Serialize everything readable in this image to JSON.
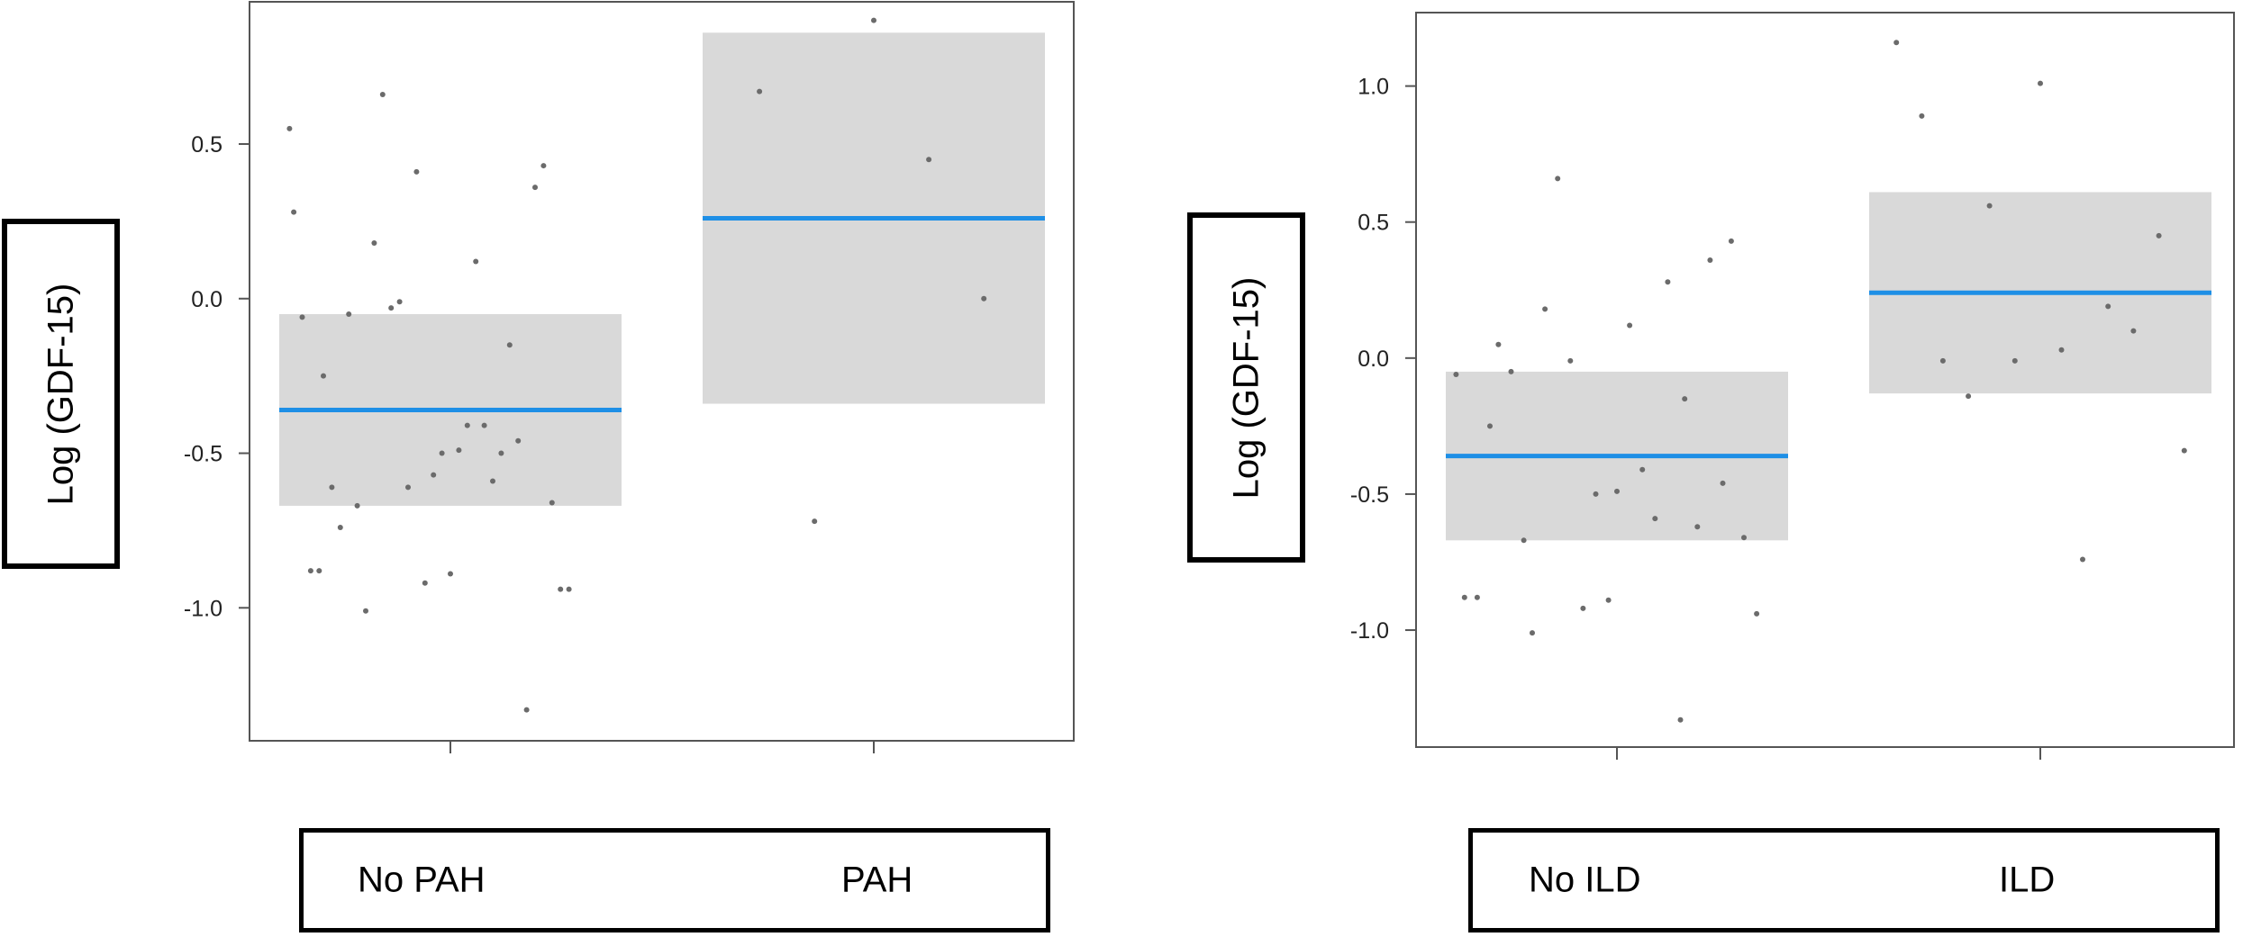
{
  "chart_data": [
    {
      "type": "scatter",
      "ylabel": "Log (GDF-15)",
      "categories": [
        "No PAH",
        "PAH"
      ],
      "yticks": [
        -1.0,
        -0.5,
        0.0,
        0.5
      ],
      "ytick_labels": [
        "-1.0",
        "-0.5",
        "0.0",
        "0.5"
      ],
      "ylim": [
        -1.43,
        0.96
      ],
      "groups": [
        {
          "name": "No PAH",
          "mean": -0.36,
          "ci": [
            -0.67,
            -0.05
          ],
          "points": [
            {
              "x": 0.62,
              "y": 0.55
            },
            {
              "x": 0.63,
              "y": 0.28
            },
            {
              "x": 0.65,
              "y": -0.06
            },
            {
              "x": 0.67,
              "y": -0.88
            },
            {
              "x": 0.69,
              "y": -0.88
            },
            {
              "x": 0.7,
              "y": -0.25
            },
            {
              "x": 0.72,
              "y": -0.61
            },
            {
              "x": 0.74,
              "y": -0.74
            },
            {
              "x": 0.76,
              "y": -0.05
            },
            {
              "x": 0.78,
              "y": -0.67
            },
            {
              "x": 0.8,
              "y": -1.01
            },
            {
              "x": 0.82,
              "y": 0.18
            },
            {
              "x": 0.84,
              "y": 0.66
            },
            {
              "x": 0.86,
              "y": -0.03
            },
            {
              "x": 0.88,
              "y": -0.01
            },
            {
              "x": 0.9,
              "y": -0.61
            },
            {
              "x": 0.92,
              "y": 0.41
            },
            {
              "x": 0.94,
              "y": -0.92
            },
            {
              "x": 0.96,
              "y": -0.57
            },
            {
              "x": 0.98,
              "y": -0.5
            },
            {
              "x": 1.0,
              "y": -0.89
            },
            {
              "x": 1.02,
              "y": -0.49
            },
            {
              "x": 1.04,
              "y": -0.41
            },
            {
              "x": 1.06,
              "y": 0.12
            },
            {
              "x": 1.08,
              "y": -0.41
            },
            {
              "x": 1.1,
              "y": -0.59
            },
            {
              "x": 1.12,
              "y": -0.5
            },
            {
              "x": 1.14,
              "y": -0.15
            },
            {
              "x": 1.16,
              "y": -0.46
            },
            {
              "x": 1.18,
              "y": -1.33
            },
            {
              "x": 1.2,
              "y": 0.36
            },
            {
              "x": 1.22,
              "y": 0.43
            },
            {
              "x": 1.24,
              "y": -0.66
            },
            {
              "x": 1.26,
              "y": -0.94
            },
            {
              "x": 1.28,
              "y": -0.94
            }
          ]
        },
        {
          "name": "PAH",
          "mean": 0.26,
          "ci": [
            -0.34,
            0.86
          ],
          "points": [
            {
              "x": 1.73,
              "y": 0.67
            },
            {
              "x": 1.86,
              "y": -0.72
            },
            {
              "x": 2.0,
              "y": 0.9
            },
            {
              "x": 2.13,
              "y": 0.45
            },
            {
              "x": 2.26,
              "y": 0.0
            }
          ]
        }
      ]
    },
    {
      "type": "scatter",
      "ylabel": "Log (GDF-15)",
      "categories": [
        "No ILD",
        "ILD"
      ],
      "yticks": [
        -1.0,
        -0.5,
        0.0,
        0.5,
        1.0
      ],
      "ytick_labels": [
        "-1.0",
        "-0.5",
        "0.0",
        "0.5",
        "1.0"
      ],
      "ylim": [
        -1.43,
        1.27
      ],
      "groups": [
        {
          "name": "No ILD",
          "mean": -0.36,
          "ci": [
            -0.67,
            -0.05
          ],
          "points": [
            {
              "x": 0.62,
              "y": -0.06
            },
            {
              "x": 0.64,
              "y": -0.88
            },
            {
              "x": 0.67,
              "y": -0.88
            },
            {
              "x": 0.7,
              "y": -0.25
            },
            {
              "x": 0.72,
              "y": 0.05
            },
            {
              "x": 0.75,
              "y": -0.05
            },
            {
              "x": 0.78,
              "y": -0.67
            },
            {
              "x": 0.8,
              "y": -1.01
            },
            {
              "x": 0.83,
              "y": 0.18
            },
            {
              "x": 0.86,
              "y": 0.66
            },
            {
              "x": 0.89,
              "y": -0.01
            },
            {
              "x": 0.92,
              "y": -0.92
            },
            {
              "x": 0.95,
              "y": -0.5
            },
            {
              "x": 0.98,
              "y": -0.89
            },
            {
              "x": 1.0,
              "y": -0.49
            },
            {
              "x": 1.03,
              "y": 0.12
            },
            {
              "x": 1.06,
              "y": -0.41
            },
            {
              "x": 1.09,
              "y": -0.59
            },
            {
              "x": 1.12,
              "y": 0.28
            },
            {
              "x": 1.15,
              "y": -1.33
            },
            {
              "x": 1.16,
              "y": -0.15
            },
            {
              "x": 1.19,
              "y": -0.62
            },
            {
              "x": 1.22,
              "y": 0.36
            },
            {
              "x": 1.25,
              "y": -0.46
            },
            {
              "x": 1.27,
              "y": 0.43
            },
            {
              "x": 1.3,
              "y": -0.66
            },
            {
              "x": 1.33,
              "y": -0.94
            }
          ]
        },
        {
          "name": "ILD",
          "mean": 0.24,
          "ci": [
            -0.13,
            0.61
          ],
          "points": [
            {
              "x": 1.66,
              "y": 1.16
            },
            {
              "x": 1.72,
              "y": 0.89
            },
            {
              "x": 1.77,
              "y": -0.01
            },
            {
              "x": 1.83,
              "y": -0.14
            },
            {
              "x": 1.88,
              "y": 0.56
            },
            {
              "x": 1.94,
              "y": -0.01
            },
            {
              "x": 2.0,
              "y": 1.01
            },
            {
              "x": 2.05,
              "y": 0.03
            },
            {
              "x": 2.1,
              "y": -0.74
            },
            {
              "x": 2.16,
              "y": 0.19
            },
            {
              "x": 2.22,
              "y": 0.1
            },
            {
              "x": 2.28,
              "y": 0.45
            },
            {
              "x": 2.34,
              "y": -0.34
            }
          ]
        }
      ]
    }
  ]
}
